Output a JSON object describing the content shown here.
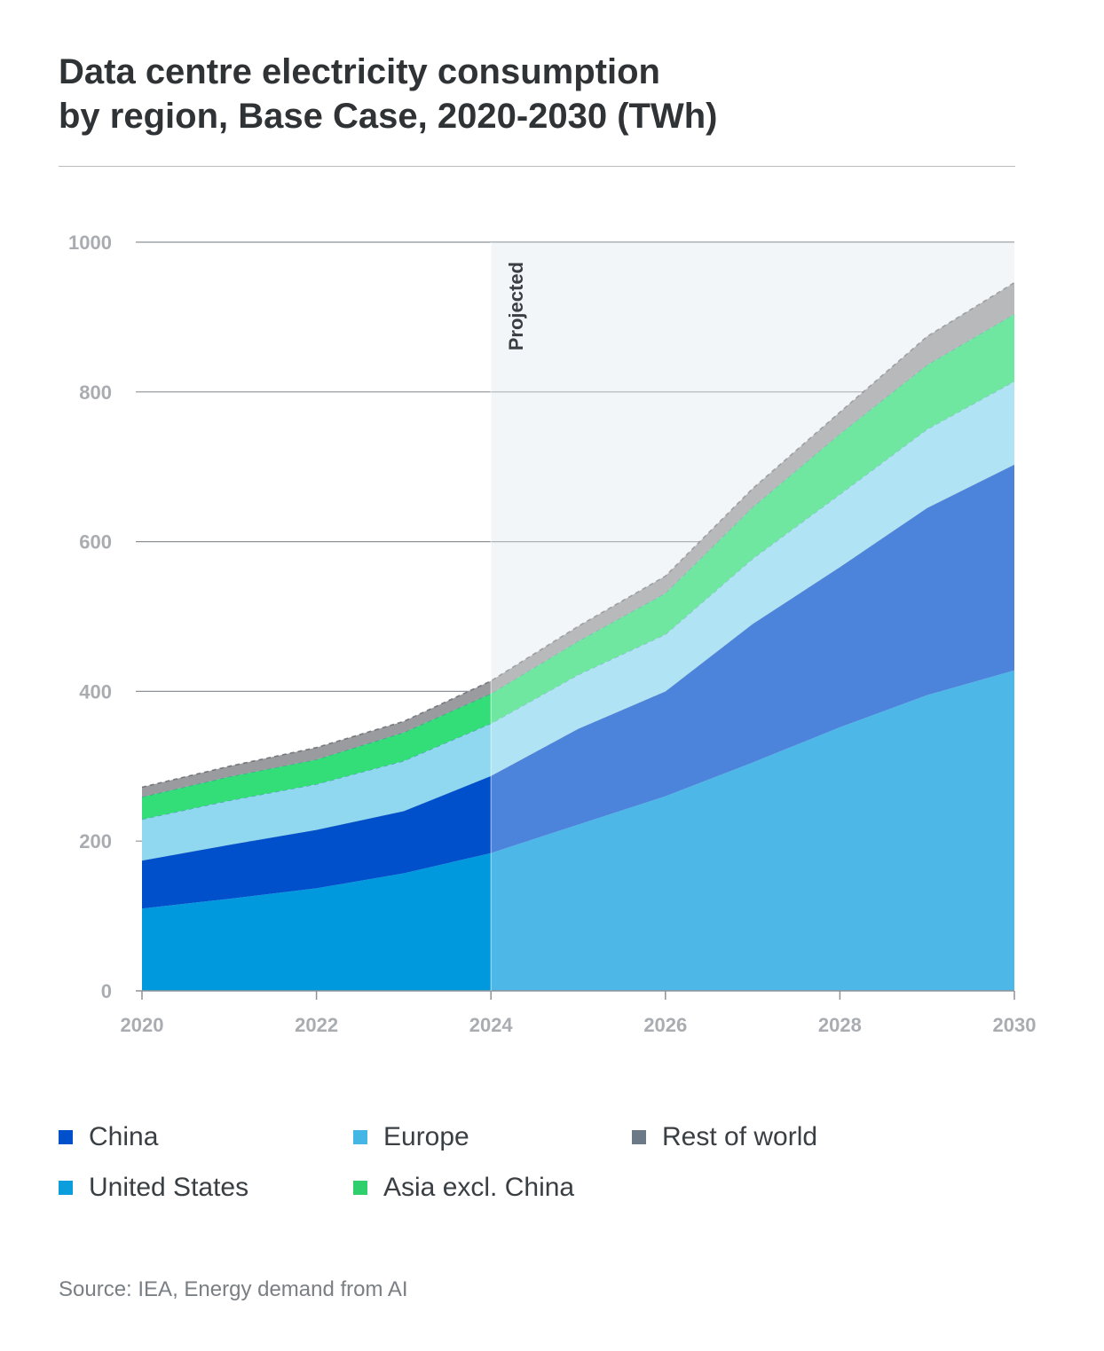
{
  "title_lines": [
    "Data centre electricity consumption",
    "by region, Base Case, 2020-2030 (TWh)"
  ],
  "source": "Source: IEA, Energy demand from AI",
  "colors": {
    "united_states": "#0099dd",
    "china": "#0050cc",
    "europe": "#8fd8f0",
    "asia_excl_china": "#33dd77",
    "rest_of_world": "#999b9e",
    "projected_shade": "#eef3f7"
  },
  "legend": [
    {
      "label": "China",
      "color": "#0050cc"
    },
    {
      "label": "Europe",
      "color": "#44b6e6"
    },
    {
      "label": "Rest of world",
      "color": "#6c7a88"
    },
    {
      "label": "United States",
      "color": "#0b9ddc"
    },
    {
      "label": "Asia excl. China",
      "color": "#2fcf6d"
    }
  ],
  "chart_data": {
    "type": "area",
    "stacked": true,
    "x": [
      2020,
      2021,
      2022,
      2023,
      2024,
      2025,
      2026,
      2027,
      2028,
      2029,
      2030
    ],
    "xticks": [
      "2020",
      "2022",
      "2024",
      "2026",
      "2028",
      "2030"
    ],
    "yticks": [
      "0",
      "200",
      "400",
      "600",
      "800",
      "1000"
    ],
    "ylim": [
      0,
      1000
    ],
    "xlim": [
      2020,
      2030
    ],
    "projected_from": 2024,
    "projected_label": "Projected",
    "grid": true,
    "series": [
      {
        "name": "United States",
        "values": [
          110,
          123,
          137,
          157,
          184,
          222,
          260,
          305,
          352,
          395,
          428
        ]
      },
      {
        "name": "China",
        "values": [
          64,
          72,
          78,
          83,
          103,
          128,
          140,
          185,
          214,
          250,
          275
        ]
      },
      {
        "name": "Europe",
        "values": [
          55,
          59,
          61,
          67,
          70,
          72,
          76,
          87,
          97,
          105,
          111
        ]
      },
      {
        "name": "Asia excl. China",
        "values": [
          30,
          32,
          33,
          38,
          40,
          45,
          55,
          69,
          81,
          86,
          90
        ]
      },
      {
        "name": "Rest of world",
        "values": [
          13,
          14,
          16,
          15,
          17,
          20,
          23,
          25,
          29,
          38,
          42
        ]
      }
    ]
  }
}
